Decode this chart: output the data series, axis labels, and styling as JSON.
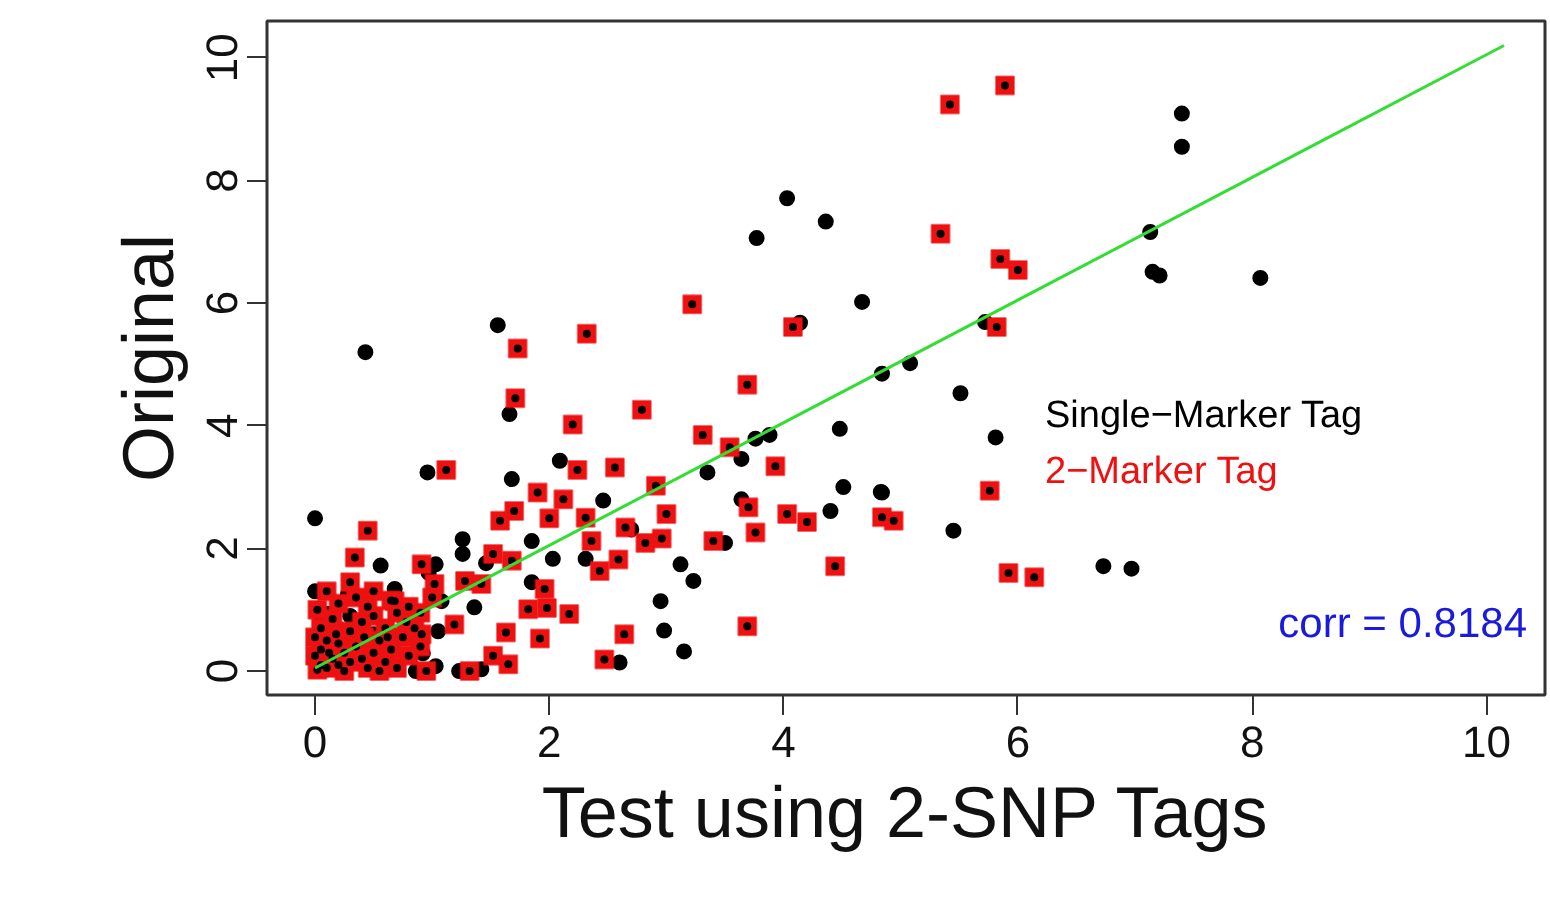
{
  "chart_data": {
    "type": "scatter",
    "xlabel": "Test using 2-SNP Tags",
    "ylabel": "Original",
    "xlim": [
      -0.41,
      10.5
    ],
    "ylim": [
      -0.39,
      10.6
    ],
    "xticks": [
      0,
      2,
      4,
      6,
      8,
      10
    ],
    "yticks": [
      0,
      2,
      4,
      6,
      8,
      10
    ],
    "grid": false,
    "legend": "right",
    "annotations": [
      "corr = 0.8184"
    ],
    "series": [
      {
        "name": "Single−Marker Tag",
        "color": "#000000",
        "marker": "circle",
        "x": [
          0.43,
          1.56,
          3.77,
          4.03,
          4.36,
          4.67,
          4.14,
          1.66,
          4.48,
          4.84,
          3.88,
          3.76,
          7.4,
          7.4,
          7.13,
          7.15,
          7.21,
          8.07,
          5.72,
          5.08,
          5.51,
          5.81,
          4.84,
          5.45,
          6.73,
          6.97,
          0.96,
          2.09,
          1.68,
          3.35,
          3.64,
          4.51,
          4.83,
          4.4,
          0.0,
          2.46,
          3.64,
          3.5,
          3.12,
          3.23,
          2.95,
          2.98,
          3.15,
          2.6,
          2.7,
          2.31,
          2.03,
          1.85,
          1.26,
          1.26,
          1.46,
          0.56,
          1.03,
          0.0,
          0.68,
          1.85,
          1.05,
          0.92,
          1.03,
          1.23,
          1.42,
          0.86,
          0.11,
          0.28,
          1.08,
          1.36,
          0.97,
          0.05,
          0.3,
          0.5
        ],
        "values": [
          5.2,
          5.64,
          7.06,
          7.71,
          7.33,
          6.02,
          5.68,
          4.19,
          3.95,
          4.85,
          3.85,
          3.79,
          9.09,
          8.55,
          7.16,
          6.51,
          6.45,
          6.41,
          5.69,
          5.02,
          4.53,
          3.81,
          2.91,
          2.29,
          1.71,
          1.67,
          3.24,
          3.43,
          3.13,
          3.24,
          3.46,
          3.0,
          2.92,
          2.61,
          2.49,
          2.78,
          2.8,
          2.09,
          1.74,
          1.47,
          1.14,
          0.66,
          0.32,
          0.14,
          2.31,
          1.83,
          1.83,
          2.12,
          2.15,
          1.91,
          1.76,
          1.72,
          1.74,
          1.3,
          1.34,
          1.45,
          0.65,
          0.29,
          0.08,
          0.0,
          0.03,
          0.0,
          0.93,
          1.25,
          1.14,
          1.04,
          1.6,
          0.8,
          0.9,
          0.6
        ]
      },
      {
        "name": "2−Marker Tag",
        "color": "#ee1111",
        "marker": "square",
        "x": [
          1.73,
          2.32,
          3.22,
          4.08,
          1.71,
          2.2,
          2.79,
          3.69,
          3.31,
          3.54,
          5.42,
          5.89,
          5.34,
          5.85,
          6.0,
          5.82,
          5.76,
          4.94,
          4.84,
          5.92,
          6.14,
          1.12,
          2.24,
          2.56,
          3.93,
          2.91,
          1.9,
          2.12,
          1.7,
          1.58,
          2.0,
          2.31,
          3.0,
          3.7,
          4.03,
          4.2,
          3.76,
          2.65,
          2.82,
          2.96,
          3.4,
          2.36,
          0.45,
          0.34,
          0.91,
          1.52,
          1.68,
          2.59,
          2.43,
          1.96,
          1.82,
          1.98,
          2.17,
          1.63,
          1.92,
          2.64,
          3.69,
          4.44,
          1.52,
          1.65,
          2.47,
          1.32,
          1.19,
          0.91,
          1.28,
          1.42,
          1.02,
          0.68,
          0.02,
          0.05,
          0.1,
          0.15,
          0.2,
          0.25,
          0.3,
          0.05,
          0.1,
          0.2,
          0.35,
          0.4,
          0.45,
          0.5,
          0.55,
          0.6,
          0.65,
          0.7,
          0.75,
          0.8,
          0.85,
          0.9,
          0.05,
          0.15,
          0.3,
          0.4,
          0.5,
          0.6,
          0.7,
          0.02,
          0.2,
          0.35,
          0.5,
          0.65,
          0.8,
          0.1,
          0.3,
          0.25,
          0.55,
          0.95,
          0.12,
          0.42,
          0.62,
          0.0,
          0.0,
          0.78,
          0.9,
          1.0,
          0.45,
          0.18
        ],
        "values": [
          5.26,
          5.5,
          5.98,
          5.61,
          4.45,
          4.02,
          4.26,
          4.67,
          3.85,
          3.65,
          9.24,
          9.55,
          7.13,
          6.72,
          6.54,
          5.61,
          2.94,
          2.45,
          2.51,
          1.6,
          1.53,
          3.28,
          3.28,
          3.32,
          3.34,
          3.02,
          2.91,
          2.8,
          2.61,
          2.45,
          2.49,
          2.5,
          2.56,
          2.67,
          2.56,
          2.43,
          2.26,
          2.34,
          2.09,
          2.16,
          2.12,
          2.12,
          2.29,
          1.85,
          1.74,
          1.91,
          1.8,
          1.82,
          1.63,
          1.34,
          1.01,
          1.03,
          0.93,
          0.63,
          0.53,
          0.6,
          0.73,
          1.71,
          0.25,
          0.11,
          0.19,
          0.0,
          0.76,
          0.6,
          1.47,
          1.42,
          1.42,
          1.14,
          0.02,
          0.1,
          0.05,
          0.2,
          0.1,
          0.3,
          0.15,
          0.35,
          0.5,
          0.45,
          0.4,
          0.2,
          0.05,
          0.3,
          0.5,
          0.15,
          0.35,
          0.05,
          0.55,
          0.25,
          0.7,
          0.4,
          0.7,
          0.85,
          0.65,
          0.8,
          0.9,
          0.7,
          0.95,
          1.0,
          1.1,
          1.2,
          1.3,
          1.15,
          1.05,
          1.3,
          1.45,
          0.0,
          0.0,
          0.0,
          0.3,
          0.55,
          0.55,
          0.25,
          0.55,
          0.8,
          0.95,
          1.2,
          1.05,
          0.6
        ]
      },
      {
        "type": "line",
        "color": "#33dd33",
        "line_style": "solid",
        "x": [
          0,
          10.15
        ],
        "values": [
          0.05,
          10.2
        ]
      }
    ]
  }
}
